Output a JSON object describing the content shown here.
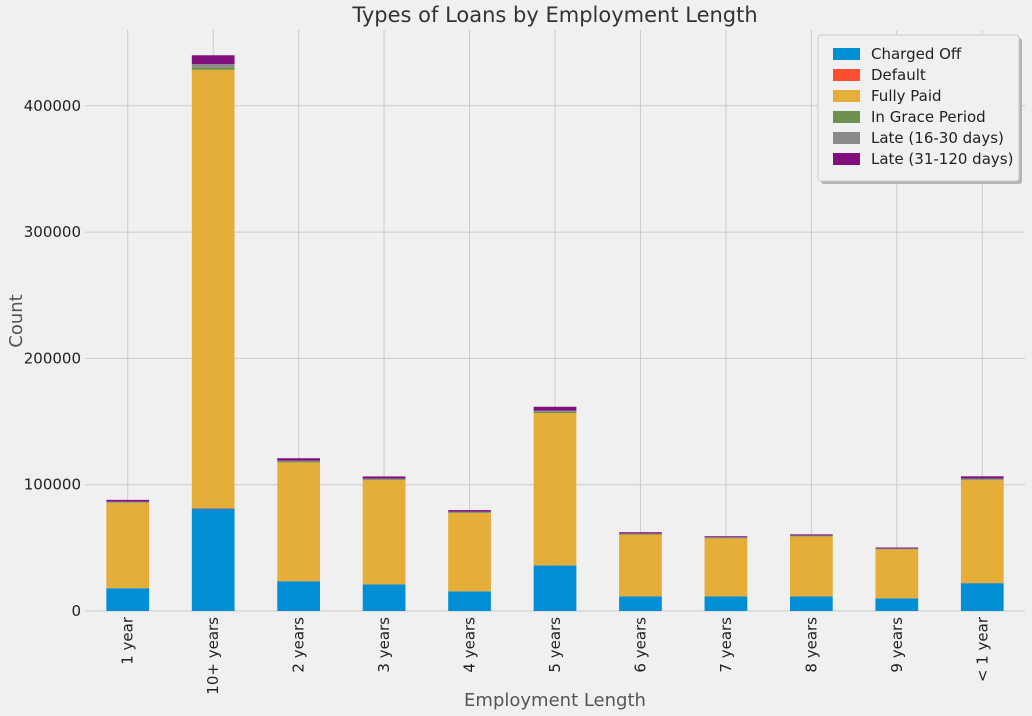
{
  "chart_data": {
    "type": "bar",
    "stacked": true,
    "title": "Types of Loans by Employment Length",
    "xlabel": "Employment Length",
    "ylabel": "Count",
    "ylim": [
      0,
      460000
    ],
    "yticks": [
      0,
      100000,
      200000,
      300000,
      400000
    ],
    "grid": true,
    "legend_position": "top-right",
    "categories": [
      "1 year",
      "10+ years",
      "2 years",
      "3 years",
      "4 years",
      "5 years",
      "6 years",
      "7 years",
      "8 years",
      "9 years",
      "< 1 year"
    ],
    "series": [
      {
        "name": "Charged Off",
        "color": "#008fd5",
        "values": [
          18000,
          81000,
          23500,
          21000,
          15500,
          36000,
          11500,
          11500,
          11500,
          10000,
          22000
        ]
      },
      {
        "name": "Default",
        "color": "#fc4f30",
        "values": [
          100,
          500,
          150,
          130,
          100,
          200,
          80,
          80,
          80,
          60,
          130
        ]
      },
      {
        "name": "Fully Paid",
        "color": "#e5ae38",
        "values": [
          67500,
          347000,
          94000,
          82500,
          62000,
          120500,
          49000,
          46000,
          47500,
          38800,
          81500
        ]
      },
      {
        "name": "In Grace Period",
        "color": "#6d904f",
        "values": [
          500,
          2000,
          700,
          600,
          500,
          900,
          400,
          350,
          350,
          300,
          600
        ]
      },
      {
        "name": "Late (16-30 days)",
        "color": "#8b8b8b",
        "values": [
          500,
          2500,
          700,
          600,
          500,
          1100,
          400,
          350,
          350,
          300,
          700
        ]
      },
      {
        "name": "Late (31-120 days)",
        "color": "#810f7c",
        "values": [
          1400,
          7000,
          1900,
          1700,
          1300,
          3000,
          1000,
          900,
          900,
          800,
          1700
        ]
      }
    ]
  }
}
